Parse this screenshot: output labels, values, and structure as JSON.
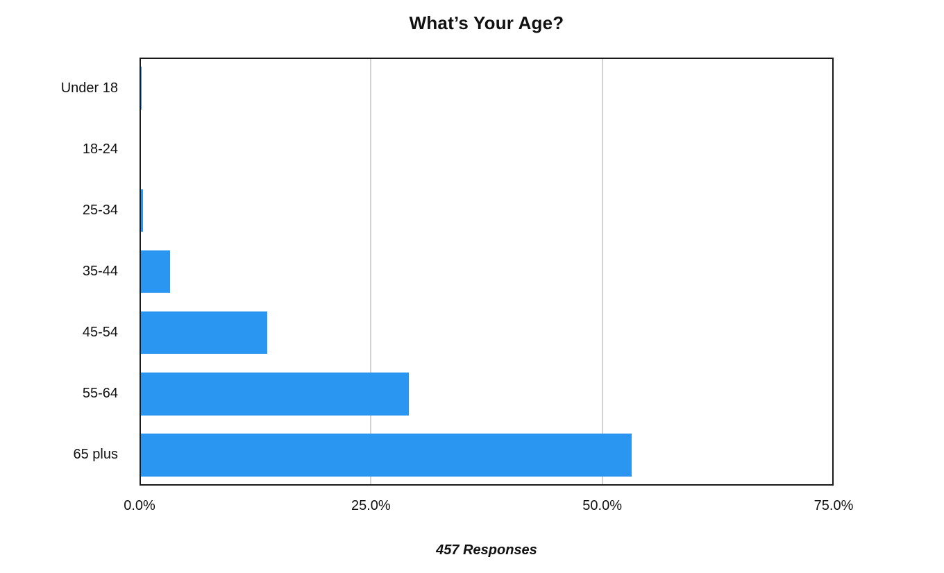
{
  "chart": {
    "title": "What’s Your Age?",
    "caption": "457 Responses"
  },
  "colors": {
    "bar": "#2B95F2",
    "gridline": "#D2D2D2",
    "plot_border": "#1A1A1A",
    "text": "#111111",
    "background": "#FFFFFF"
  },
  "chart_data": {
    "type": "bar",
    "orientation": "horizontal",
    "title": "What’s Your Age?",
    "subtitle": "457 Responses",
    "categories": [
      "Under 18",
      "18-24",
      "25-34",
      "35-44",
      "45-54",
      "55-64",
      "65 plus"
    ],
    "values": [
      0.2,
      0.0,
      0.4,
      3.3,
      13.8,
      29.1,
      53.2
    ],
    "value_unit": "%",
    "xlabel": "",
    "ylabel": "",
    "xlim": [
      0,
      75
    ],
    "x_ticks": [
      {
        "value": 0,
        "label": "0.0%"
      },
      {
        "value": 25,
        "label": "25.0%"
      },
      {
        "value": 50,
        "label": "50.0%"
      },
      {
        "value": 75,
        "label": "75.0%"
      }
    ],
    "grid": "vertical-only",
    "legend_position": "none"
  }
}
